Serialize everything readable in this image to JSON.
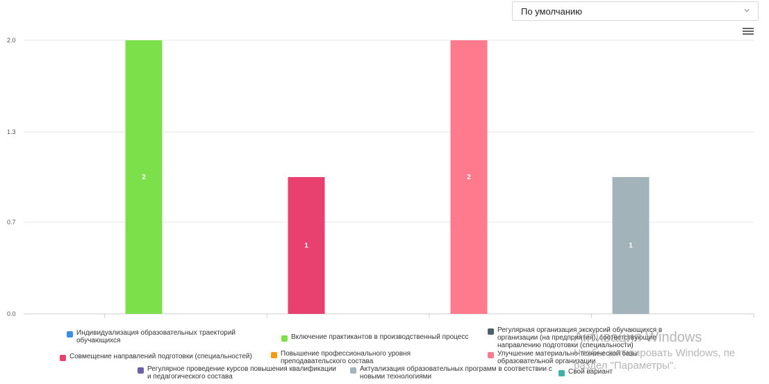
{
  "dropdown": {
    "selected": "По умолчанию"
  },
  "icons": {
    "menu": "hamburger-menu-icon",
    "dropdown": "chevron-down-icon"
  },
  "chart_data": {
    "type": "bar",
    "categories": [
      "",
      "",
      "",
      ""
    ],
    "values": [
      2,
      1,
      2,
      1
    ],
    "data_labels": [
      "2",
      "1",
      "2",
      "1"
    ],
    "bar_colors": [
      "#7be04a",
      "#e8416f",
      "#ff7a8c",
      "#a2b3ba"
    ],
    "ylim": [
      0,
      2
    ],
    "yticks": [
      "0.0",
      "0.7",
      "1.3",
      "2.0"
    ],
    "ytick_values": [
      0,
      0.67,
      1.33,
      2
    ],
    "grid": true,
    "legend_position": "bottom",
    "legend": [
      {
        "name": "Индивидуализация образовательных траекторий обучающихся",
        "color": "#3a8ee6"
      },
      {
        "name": "Включение практикантов в производственный процесс",
        "color": "#7be04a"
      },
      {
        "name": "Регулярная организация экскурсий обучающихся в организации (на предприятия), соответствующие направлению подготовки (специальности)",
        "color": "#4e5f6a"
      },
      {
        "name": "Совмещение направлений подготовки (специальностей)",
        "color": "#e8416f"
      },
      {
        "name": "Повышение профессионального уровня преподавательского состава",
        "color": "#f39c12"
      },
      {
        "name": "Улучшение материально-технической базы образовательной организации",
        "color": "#ff7a8c"
      },
      {
        "name": "Регулярное проведение курсов повышения квалификации и педагогического состава",
        "color": "#6b5fa8"
      },
      {
        "name": "Актуализация образовательных программ в соответствии с новыми технологиями",
        "color": "#a2b3ba"
      },
      {
        "name": "Свой вариант",
        "color": "#3fb3a6"
      }
    ]
  },
  "watermark": {
    "line1": "Активация Windows",
    "line2": "Чтобы активировать Windows, пе",
    "line3": "раздел \"Параметры\"."
  }
}
